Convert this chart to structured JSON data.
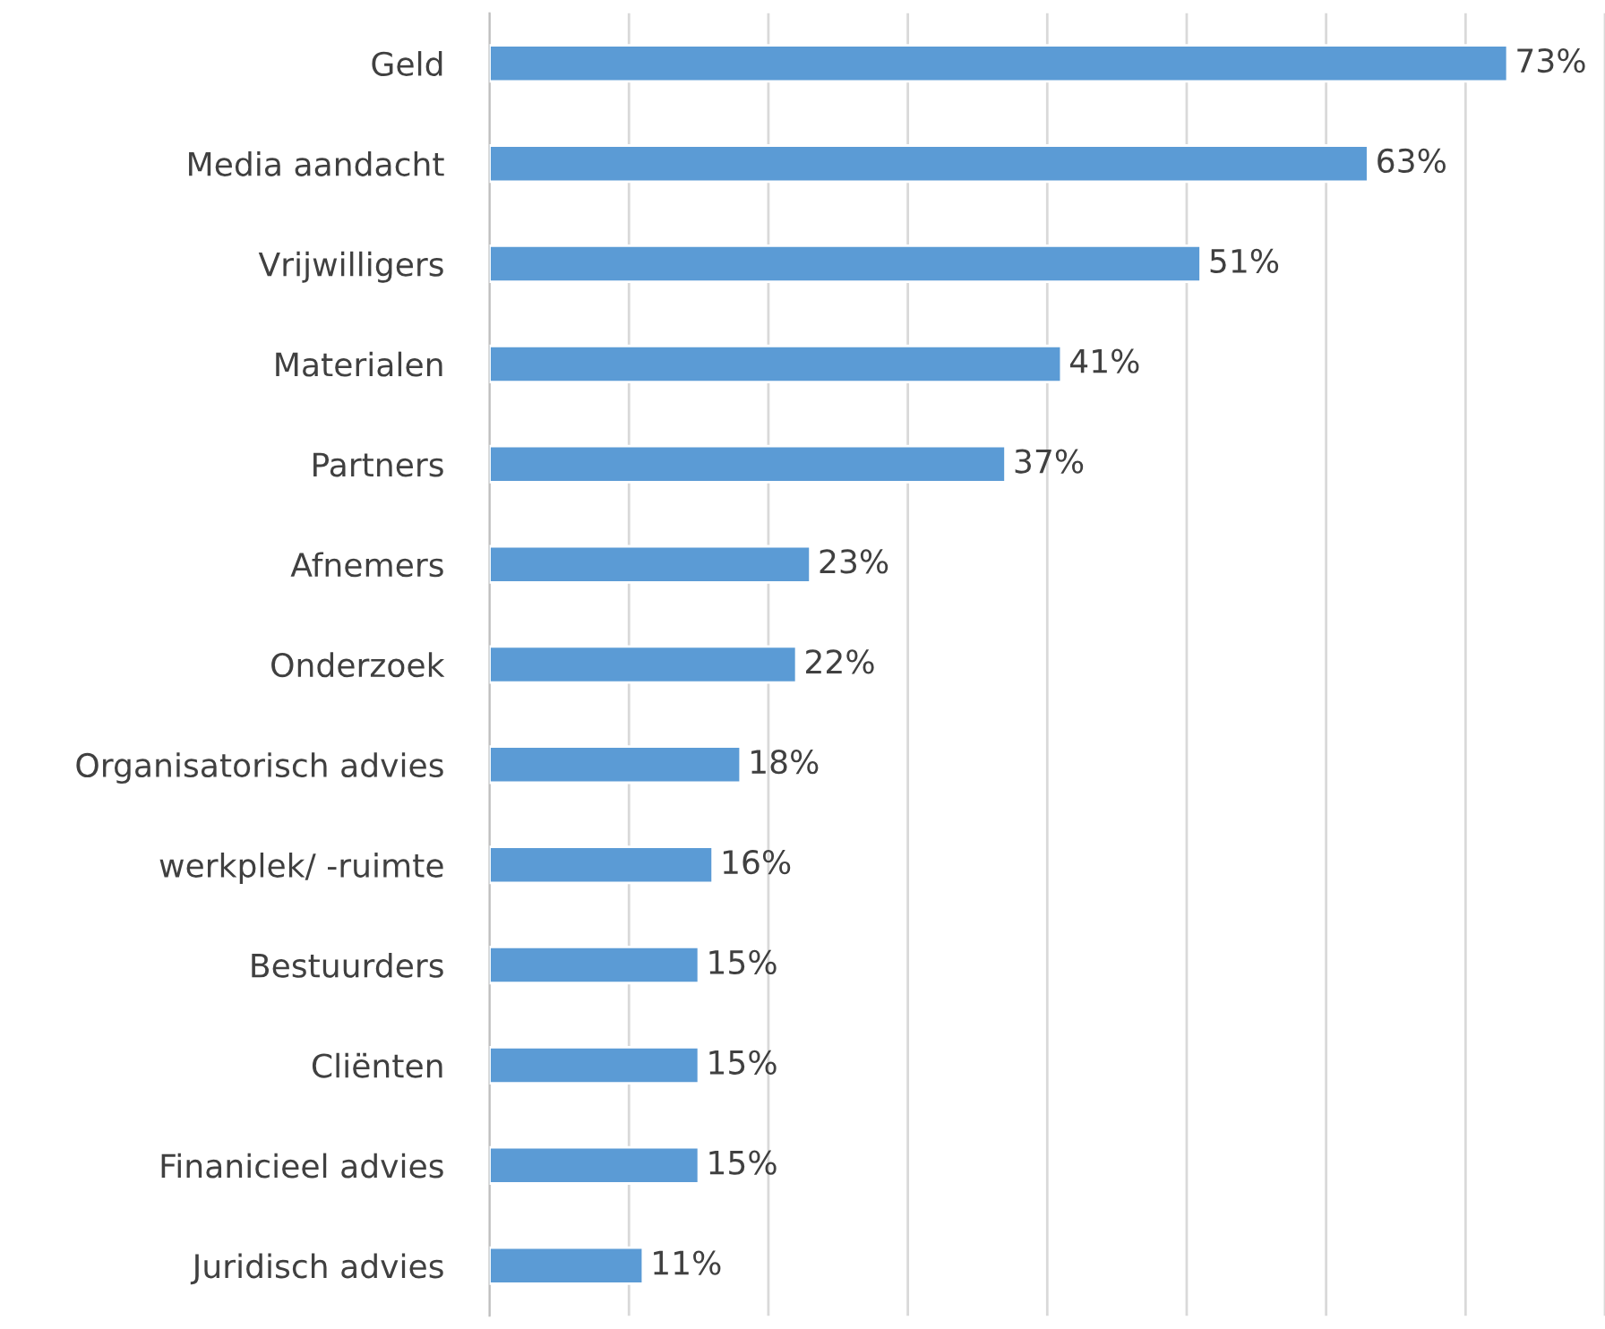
{
  "chart_data": {
    "type": "bar",
    "orientation": "horizontal",
    "categories": [
      "Geld",
      "Media aandacht",
      "Vrijwilligers",
      "Materialen",
      "Partners",
      "Afnemers",
      "Onderzoek",
      "Organisatorisch advies",
      "werkplek/ -ruimte",
      "Bestuurders",
      "Cliënten",
      "Finanicieel advies",
      "Juridisch advies"
    ],
    "values": [
      73,
      63,
      51,
      41,
      37,
      23,
      22,
      18,
      16,
      15,
      15,
      15,
      11
    ],
    "value_labels": [
      "73%",
      "63%",
      "51%",
      "41%",
      "37%",
      "23%",
      "22%",
      "18%",
      "16%",
      "15%",
      "15%",
      "15%",
      "11%"
    ],
    "color": "#5b9bd5",
    "xlim": [
      0,
      80
    ],
    "xticks": [
      {
        "value": 0,
        "label": null
      },
      {
        "value": 10,
        "label": null
      },
      {
        "value": 20,
        "label": null
      },
      {
        "value": 30,
        "label": null
      },
      {
        "value": 40,
        "label": null
      },
      {
        "value": 50,
        "label": null
      },
      {
        "value": 60,
        "label": null
      },
      {
        "value": 70,
        "label": null
      },
      {
        "value": 80,
        "label": null
      }
    ],
    "grid": "x",
    "tick_labels": "y"
  }
}
